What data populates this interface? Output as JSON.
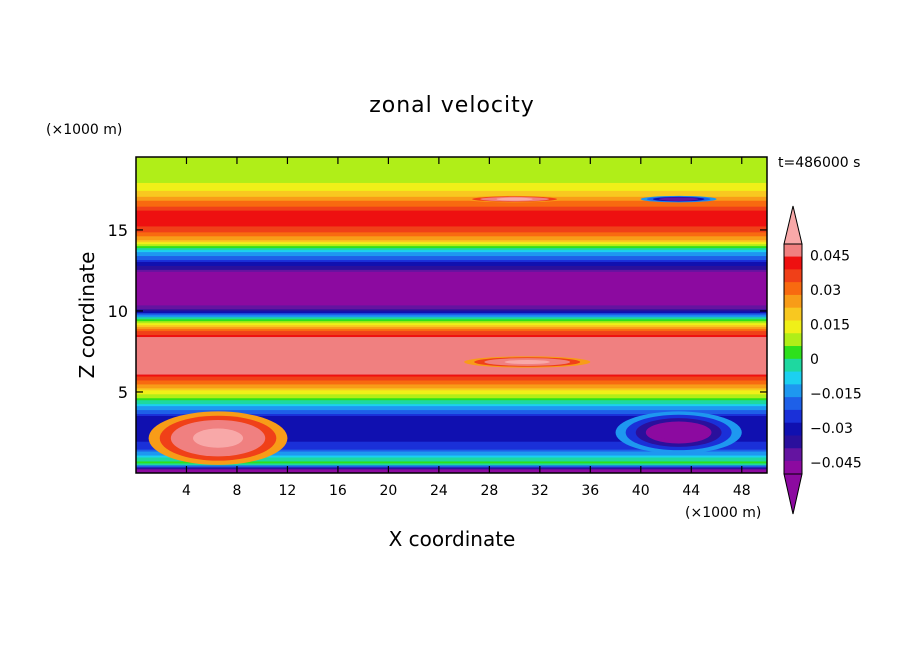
{
  "chart_data": {
    "type": "heatmap",
    "title": "zonal velocity",
    "xlabel": "X coordinate",
    "ylabel": "Z coordinate",
    "x_unit_label": "(×1000 m)",
    "y_unit_label": "(×1000 m)",
    "time_label": "t=486000 s",
    "xlim": [
      0,
      50
    ],
    "ylim": [
      0,
      19.5
    ],
    "x_ticks": [
      4,
      8,
      12,
      16,
      20,
      24,
      28,
      32,
      36,
      40,
      44,
      48
    ],
    "x_tick_labels": [
      "4",
      "8",
      "12",
      "16",
      "20",
      "24",
      "28",
      "32",
      "36",
      "40",
      "44",
      "48"
    ],
    "y_ticks": [
      5,
      10,
      15
    ],
    "y_tick_labels": [
      "5",
      "10",
      "15"
    ],
    "colorbar": {
      "min": -0.05,
      "max": 0.05,
      "step": 0.005,
      "tick_values": [
        0.045,
        0.03,
        0.015,
        0,
        -0.015,
        -0.03,
        -0.045
      ],
      "tick_labels": [
        "0.045",
        "0.03",
        "0.015",
        "0",
        "−0.015",
        "−0.03",
        "−0.045"
      ],
      "colors_high_to_low": [
        "#f08080",
        "#ee1010",
        "#f04018",
        "#f86a10",
        "#f89c18",
        "#f8c820",
        "#f0f018",
        "#b0ee18",
        "#2ee01c",
        "#1ed8a0",
        "#1cd0f0",
        "#1e98f0",
        "#1e60e8",
        "#1a30d8",
        "#1010b0",
        "#2a109c",
        "#6414a0",
        "#8c0aa0"
      ],
      "over_color": "#f8a8a8",
      "under_color": "#8c0aa0"
    },
    "z_profile": [
      {
        "z": 0.2,
        "u": -0.048
      },
      {
        "z": 0.6,
        "u": 0.0
      },
      {
        "z": 1.5,
        "u": -0.025
      },
      {
        "z": 2.5,
        "u": -0.035
      },
      {
        "z": 3.5,
        "u": -0.03
      },
      {
        "z": 4.3,
        "u": -0.01
      },
      {
        "z": 5.0,
        "u": 0.008
      },
      {
        "z": 5.7,
        "u": 0.025
      },
      {
        "z": 6.5,
        "u": 0.043
      },
      {
        "z": 7.5,
        "u": 0.045
      },
      {
        "z": 8.3,
        "u": 0.038
      },
      {
        "z": 9.0,
        "u": 0.018
      },
      {
        "z": 9.5,
        "u": -0.005
      },
      {
        "z": 10.0,
        "u": -0.035
      },
      {
        "z": 10.5,
        "u": -0.05
      },
      {
        "z": 11.5,
        "u": -0.052
      },
      {
        "z": 12.4,
        "u": -0.045
      },
      {
        "z": 13.0,
        "u": -0.03
      },
      {
        "z": 13.6,
        "u": -0.015
      },
      {
        "z": 14.0,
        "u": 0.0
      },
      {
        "z": 14.4,
        "u": 0.015
      },
      {
        "z": 15.0,
        "u": 0.028
      },
      {
        "z": 15.6,
        "u": 0.034
      },
      {
        "z": 16.2,
        "u": 0.03
      },
      {
        "z": 16.8,
        "u": 0.02
      },
      {
        "z": 17.3,
        "u": 0.012
      },
      {
        "z": 18.0,
        "u": 0.004
      },
      {
        "z": 19.5,
        "u": 0.002
      }
    ],
    "features": [
      {
        "name": "lower-left positive jet",
        "x": [
          1,
          12
        ],
        "z": [
          0.5,
          3.8
        ],
        "u_peak": 0.05
      },
      {
        "name": "lower-right negative core",
        "x": [
          38,
          48
        ],
        "z": [
          1.2,
          3.8
        ],
        "u_peak": -0.05
      },
      {
        "name": "mid-level positive maximum",
        "x": [
          26,
          36
        ],
        "z": [
          6.5,
          7.2
        ],
        "u_peak": 0.05
      },
      {
        "name": "upper positive patch",
        "x": [
          26,
          34
        ],
        "z": [
          16.7,
          17.1
        ],
        "u_peak": 0.05
      },
      {
        "name": "upper negative patch",
        "x": [
          40,
          46
        ],
        "z": [
          16.7,
          17.1
        ],
        "u_peak": -0.045
      }
    ]
  }
}
